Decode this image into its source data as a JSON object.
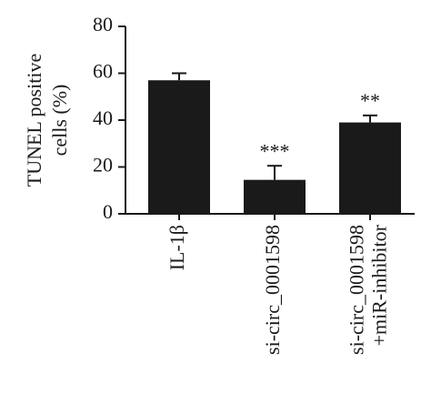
{
  "chart_data": {
    "type": "bar",
    "y_label": [
      "TUNEL positive",
      "cells (%)"
    ],
    "categories": [
      [
        "IL-1β"
      ],
      [
        "si-circ_0001598"
      ],
      [
        "si-circ_0001598",
        "+miR-inhibitor"
      ]
    ],
    "values": [
      57,
      14.5,
      39
    ],
    "errors": [
      3,
      6,
      3
    ],
    "significance": [
      null,
      "***",
      "**"
    ],
    "color": "#1a1a1a",
    "ylim": [
      0,
      80
    ],
    "yticks": [
      0,
      20,
      40,
      60,
      80
    ],
    "grid": false
  }
}
